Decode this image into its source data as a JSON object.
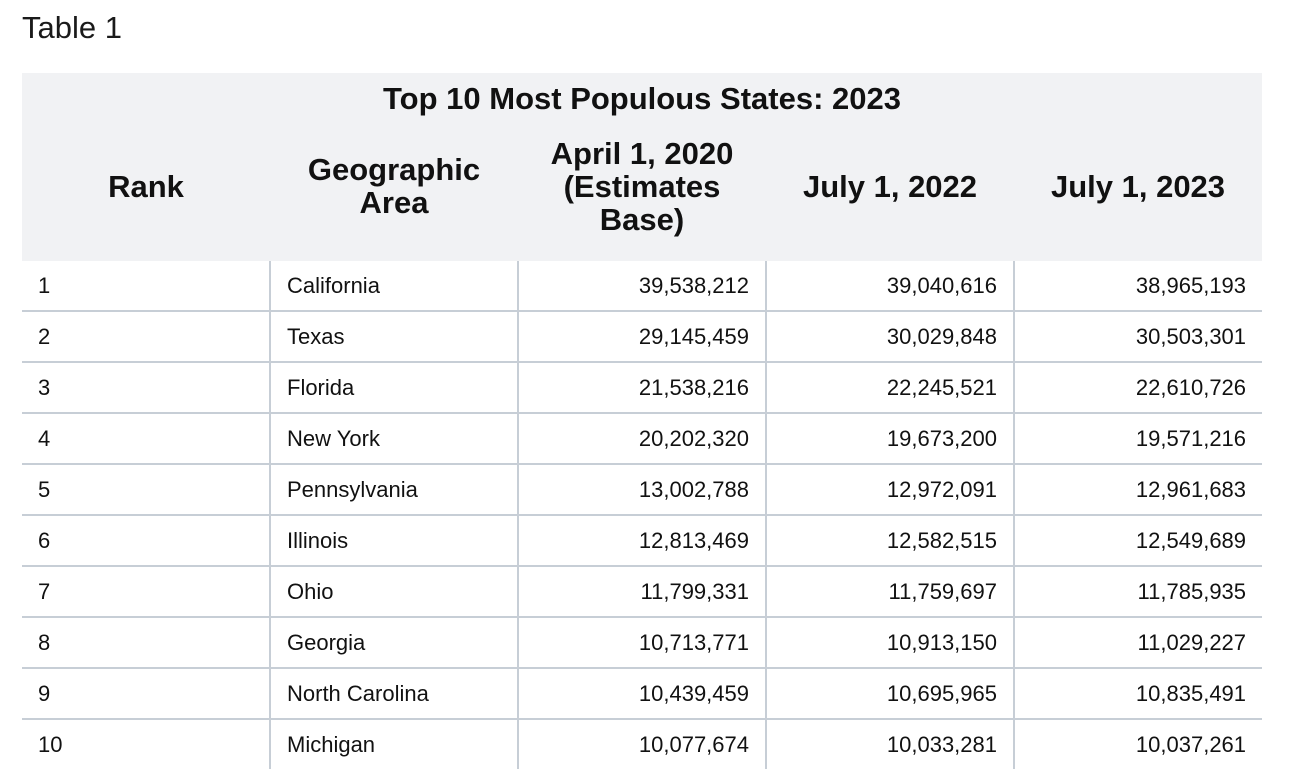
{
  "caption": "Table 1",
  "title": "Top 10 Most Populous States: 2023",
  "columns": {
    "rank": "Rank",
    "area_line1": "Geographic",
    "area_line2": "Area",
    "base_line1": "April 1, 2020",
    "base_line2": "(Estimates",
    "base_line3": "Base)",
    "jul2022": "July 1, 2022",
    "jul2023": "July 1, 2023"
  },
  "rows": [
    {
      "rank": "1",
      "area": "California",
      "apr2020": "39,538,212",
      "jul2022": "39,040,616",
      "jul2023": "38,965,193"
    },
    {
      "rank": "2",
      "area": "Texas",
      "apr2020": "29,145,459",
      "jul2022": "30,029,848",
      "jul2023": "30,503,301"
    },
    {
      "rank": "3",
      "area": "Florida",
      "apr2020": "21,538,216",
      "jul2022": "22,245,521",
      "jul2023": "22,610,726"
    },
    {
      "rank": "4",
      "area": "New York",
      "apr2020": "20,202,320",
      "jul2022": "19,673,200",
      "jul2023": "19,571,216"
    },
    {
      "rank": "5",
      "area": "Pennsylvania",
      "apr2020": "13,002,788",
      "jul2022": "12,972,091",
      "jul2023": "12,961,683"
    },
    {
      "rank": "6",
      "area": "Illinois",
      "apr2020": "12,813,469",
      "jul2022": "12,582,515",
      "jul2023": "12,549,689"
    },
    {
      "rank": "7",
      "area": "Ohio",
      "apr2020": "11,799,331",
      "jul2022": "11,759,697",
      "jul2023": "11,785,935"
    },
    {
      "rank": "8",
      "area": "Georgia",
      "apr2020": "10,713,771",
      "jul2022": "10,913,150",
      "jul2023": "11,029,227"
    },
    {
      "rank": "9",
      "area": "North Carolina",
      "apr2020": "10,439,459",
      "jul2022": "10,695,965",
      "jul2023": "10,835,491"
    },
    {
      "rank": "10",
      "area": "Michigan",
      "apr2020": "10,077,674",
      "jul2022": "10,033,281",
      "jul2023": "10,037,261"
    }
  ],
  "colors": {
    "header_bg": "#f1f2f4",
    "grid_line": "#c7ced6",
    "text": "#111111"
  }
}
